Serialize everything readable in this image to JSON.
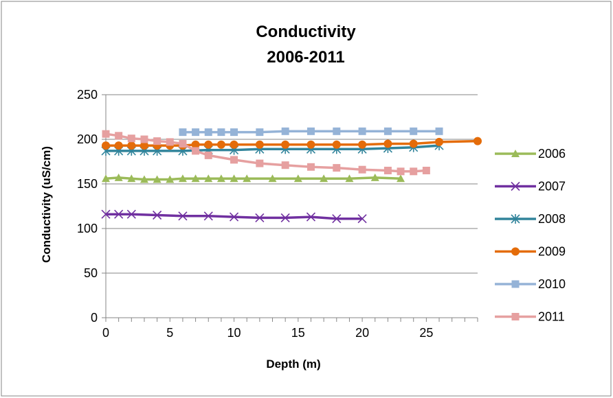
{
  "chart_data": {
    "type": "line",
    "title": [
      "Conductivity",
      "2006-2011"
    ],
    "xlabel": "Depth (m)",
    "ylabel": "Conductivity (uS/cm)",
    "xlim": [
      0,
      29
    ],
    "ylim": [
      0,
      250
    ],
    "x_ticks": [
      0,
      5,
      10,
      15,
      20,
      25
    ],
    "y_ticks": [
      0,
      50,
      100,
      150,
      200,
      250
    ],
    "grid": "horizontal",
    "legend_position": "right",
    "series": [
      {
        "name": "2006",
        "color": "#9BBB59",
        "marker": "triangle",
        "x": [
          0,
          1,
          2,
          3,
          4,
          5,
          6,
          7,
          8,
          9,
          10,
          11,
          13,
          15,
          17,
          19,
          21,
          23
        ],
        "y": [
          156,
          157,
          156,
          155,
          155,
          155,
          156,
          156,
          156,
          156,
          156,
          156,
          156,
          156,
          156,
          156,
          157,
          156
        ]
      },
      {
        "name": "2007",
        "color": "#7030A0",
        "marker": "x",
        "x": [
          0,
          1,
          2,
          4,
          6,
          8,
          10,
          12,
          14,
          16,
          18,
          20
        ],
        "y": [
          116,
          116,
          116,
          115,
          114,
          114,
          113,
          112,
          112,
          113,
          111,
          111
        ]
      },
      {
        "name": "2008",
        "color": "#31849B",
        "marker": "asterisk",
        "x": [
          0,
          1,
          2,
          3,
          4,
          6,
          8,
          10,
          12,
          14,
          16,
          18,
          20,
          22,
          24,
          26
        ],
        "y": [
          187,
          187,
          187,
          187,
          187,
          187,
          188,
          188,
          189,
          189,
          189,
          189,
          189,
          190,
          191,
          193
        ]
      },
      {
        "name": "2009",
        "color": "#E46C0A",
        "marker": "circle",
        "x": [
          0,
          1,
          2,
          3,
          4,
          5,
          6,
          7,
          8,
          9,
          10,
          12,
          14,
          16,
          18,
          20,
          22,
          24,
          26,
          29
        ],
        "y": [
          193,
          193,
          193,
          193,
          193,
          193,
          193,
          194,
          194,
          194,
          194,
          194,
          194,
          194,
          194,
          194,
          195,
          195,
          197,
          198
        ]
      },
      {
        "name": "2010",
        "color": "#95B3D7",
        "marker": "square",
        "x": [
          6,
          7,
          8,
          9,
          10,
          12,
          14,
          16,
          18,
          20,
          22,
          24,
          26
        ],
        "y": [
          208,
          208,
          208,
          208,
          208,
          208,
          209,
          209,
          209,
          209,
          209,
          209,
          209
        ]
      },
      {
        "name": "2011",
        "color": "#E6A0A0",
        "marker": "square",
        "x": [
          0,
          1,
          2,
          3,
          4,
          5,
          6,
          7,
          8,
          10,
          12,
          14,
          16,
          18,
          20,
          22,
          23,
          24,
          25
        ],
        "y": [
          206,
          204,
          201,
          200,
          198,
          197,
          195,
          187,
          182,
          177,
          173,
          171,
          169,
          168,
          166,
          165,
          164,
          164,
          165
        ]
      }
    ]
  }
}
